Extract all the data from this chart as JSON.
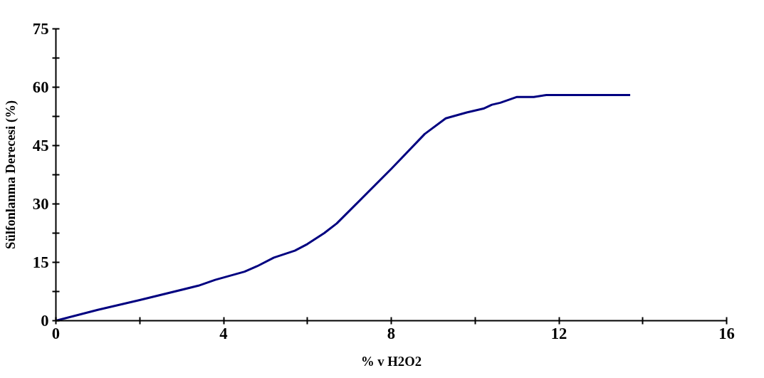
{
  "chart_data": {
    "type": "line",
    "xlabel": "% v H2O2",
    "ylabel": "Sülfonlanma Derecesi (%)",
    "x": [
      0,
      1,
      2,
      3.4,
      3.8,
      4.5,
      4.8,
      5.2,
      5.7,
      6,
      6.4,
      6.7,
      8,
      8.8,
      9.3,
      9.8,
      10.2,
      10.4,
      10.6,
      11,
      11.4,
      11.7,
      13.7
    ],
    "series": [
      {
        "color": "#000080",
        "values": [
          0,
          2.8,
          5.3,
          9,
          10.5,
          12.6,
          14,
          16.2,
          18,
          19.7,
          22.5,
          25,
          39,
          48,
          52,
          53.5,
          54.5,
          55.5,
          56,
          57.5,
          57.5,
          58,
          58
        ]
      }
    ],
    "xlim": [
      0,
      16
    ],
    "ylim": [
      0,
      75
    ],
    "xticks": [
      0,
      {
        "value": 2,
        "label": null
      },
      4,
      {
        "value": 6,
        "label": null
      },
      8,
      {
        "value": 10,
        "label": null
      },
      12,
      {
        "value": 14,
        "label": null
      },
      16
    ],
    "yticks": [
      0,
      {
        "value": 7.5,
        "label": null
      },
      15,
      {
        "value": 22.5,
        "label": null
      },
      30,
      {
        "value": 37.5,
        "label": null
      },
      45,
      {
        "value": 52.5,
        "label": null
      },
      60,
      {
        "value": 67.5,
        "label": null
      },
      75
    ],
    "grid": false,
    "marker": "none",
    "line_style": "solid"
  }
}
